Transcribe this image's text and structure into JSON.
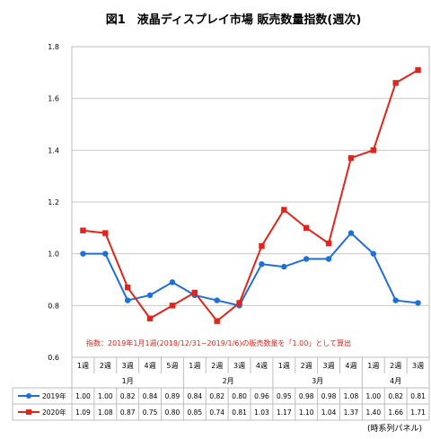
{
  "chart_data": {
    "type": "line",
    "title": "図1　液晶ディスプレイ市場 販売数量指数(週次)",
    "categories": [
      "1週",
      "2週",
      "3週",
      "4週",
      "5週",
      "1週",
      "2週",
      "3週",
      "4週",
      "1週",
      "2週",
      "3週",
      "4週",
      "1週",
      "2週",
      "3週"
    ],
    "months": [
      {
        "label": "1月",
        "start": 0,
        "end": 4
      },
      {
        "label": "2月",
        "start": 5,
        "end": 8
      },
      {
        "label": "3月",
        "start": 9,
        "end": 12
      },
      {
        "label": "4月",
        "start": 13,
        "end": 15
      }
    ],
    "ylim": [
      0.6,
      1.8
    ],
    "yticks": [
      "0.6",
      "0.8",
      "1.0",
      "1.2",
      "1.4",
      "1.6",
      "1.8"
    ],
    "grid": true,
    "series": [
      {
        "name": "2019年",
        "color": "#1f6fd8",
        "marker": "circle",
        "values": [
          1.0,
          1.0,
          0.82,
          0.84,
          0.89,
          0.84,
          0.82,
          0.8,
          0.96,
          0.95,
          0.98,
          0.98,
          1.08,
          1.0,
          0.82,
          0.81
        ],
        "labels": [
          "1.00",
          "1.00",
          "0.82",
          "0.84",
          "0.89",
          "0.84",
          "0.82",
          "0.80",
          "0.96",
          "0.95",
          "0.98",
          "0.98",
          "1.08",
          "1.00",
          "0.82",
          "0.81"
        ]
      },
      {
        "name": "2020年",
        "color": "#e0261c",
        "marker": "square",
        "values": [
          1.09,
          1.08,
          0.87,
          0.75,
          0.8,
          0.85,
          0.74,
          0.81,
          1.03,
          1.17,
          1.1,
          1.04,
          1.37,
          1.4,
          1.66,
          1.71
        ],
        "labels": [
          "1.09",
          "1.08",
          "0.87",
          "0.75",
          "0.80",
          "0.85",
          "0.74",
          "0.81",
          "1.03",
          "1.17",
          "1.10",
          "1.04",
          "1.37",
          "1.40",
          "1.66",
          "1.71"
        ]
      }
    ],
    "annotation": "指数：2019年1月1週(2018/12/31−2019/1/6)の販売数量を「1.00」として算出",
    "source": "(時系列パネル)"
  }
}
